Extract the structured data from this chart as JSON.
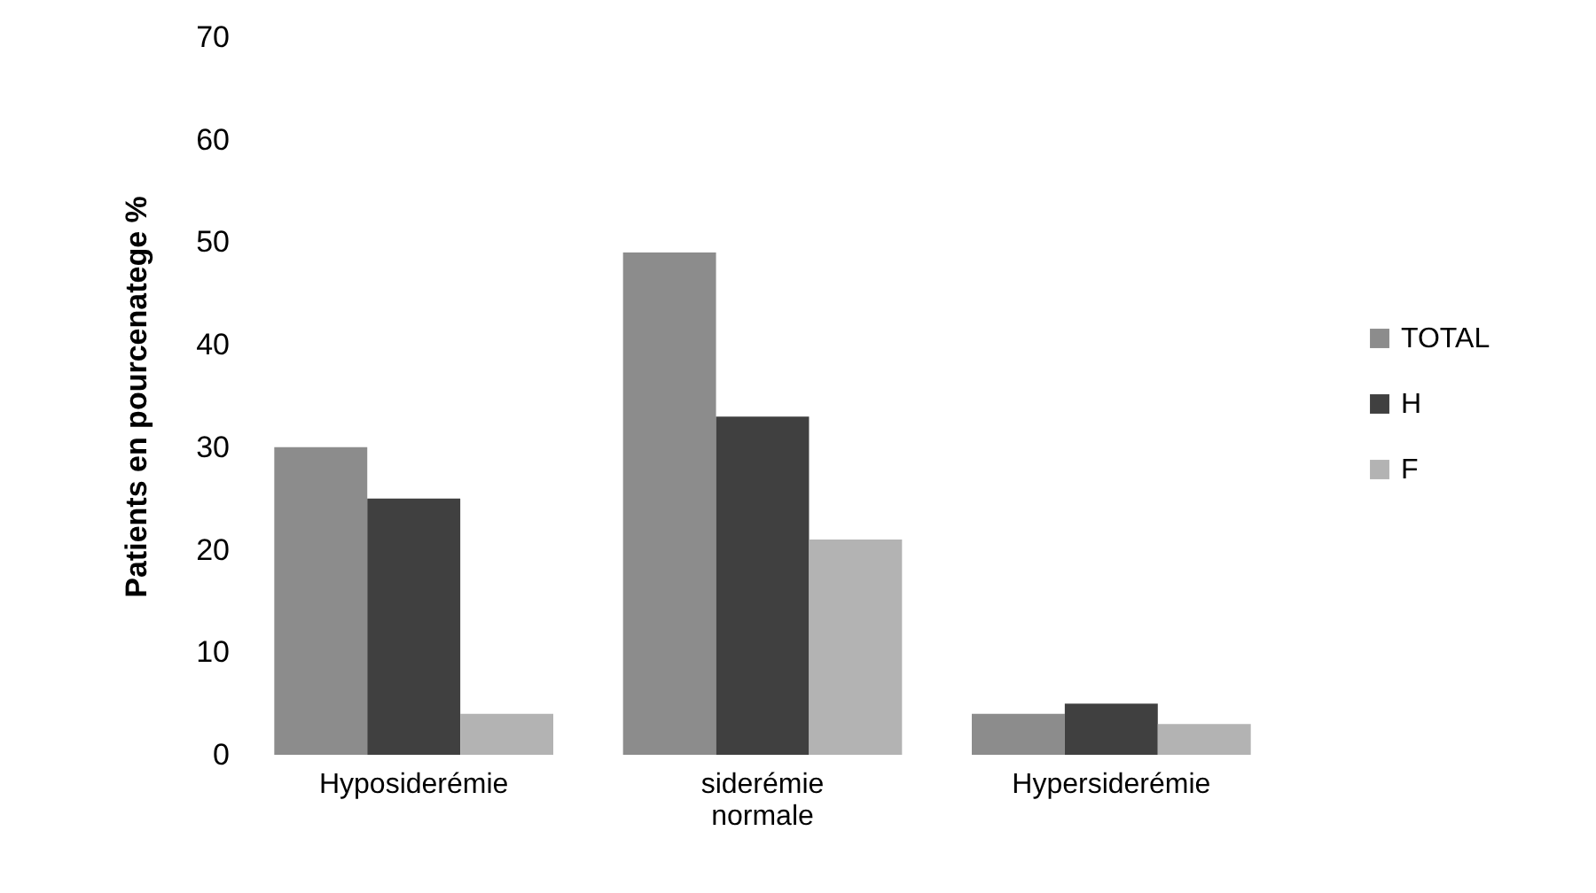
{
  "chart_data": {
    "type": "bar",
    "ylabel": "Patients en pourcenatege %",
    "categories": [
      "Hyposiderémie",
      "siderémie normale",
      "Hypersiderémie"
    ],
    "series": [
      {
        "name": "TOTAL",
        "color": "#8c8c8c",
        "values": [
          30,
          49,
          4
        ]
      },
      {
        "name": "H",
        "color": "#404040",
        "values": [
          25,
          33,
          5
        ]
      },
      {
        "name": "F",
        "color": "#b3b3b3",
        "values": [
          4,
          21,
          3
        ]
      }
    ],
    "ylim": [
      0,
      70
    ],
    "yticks": [
      0,
      10,
      20,
      30,
      40,
      50,
      60,
      70
    ],
    "legend": "right"
  }
}
